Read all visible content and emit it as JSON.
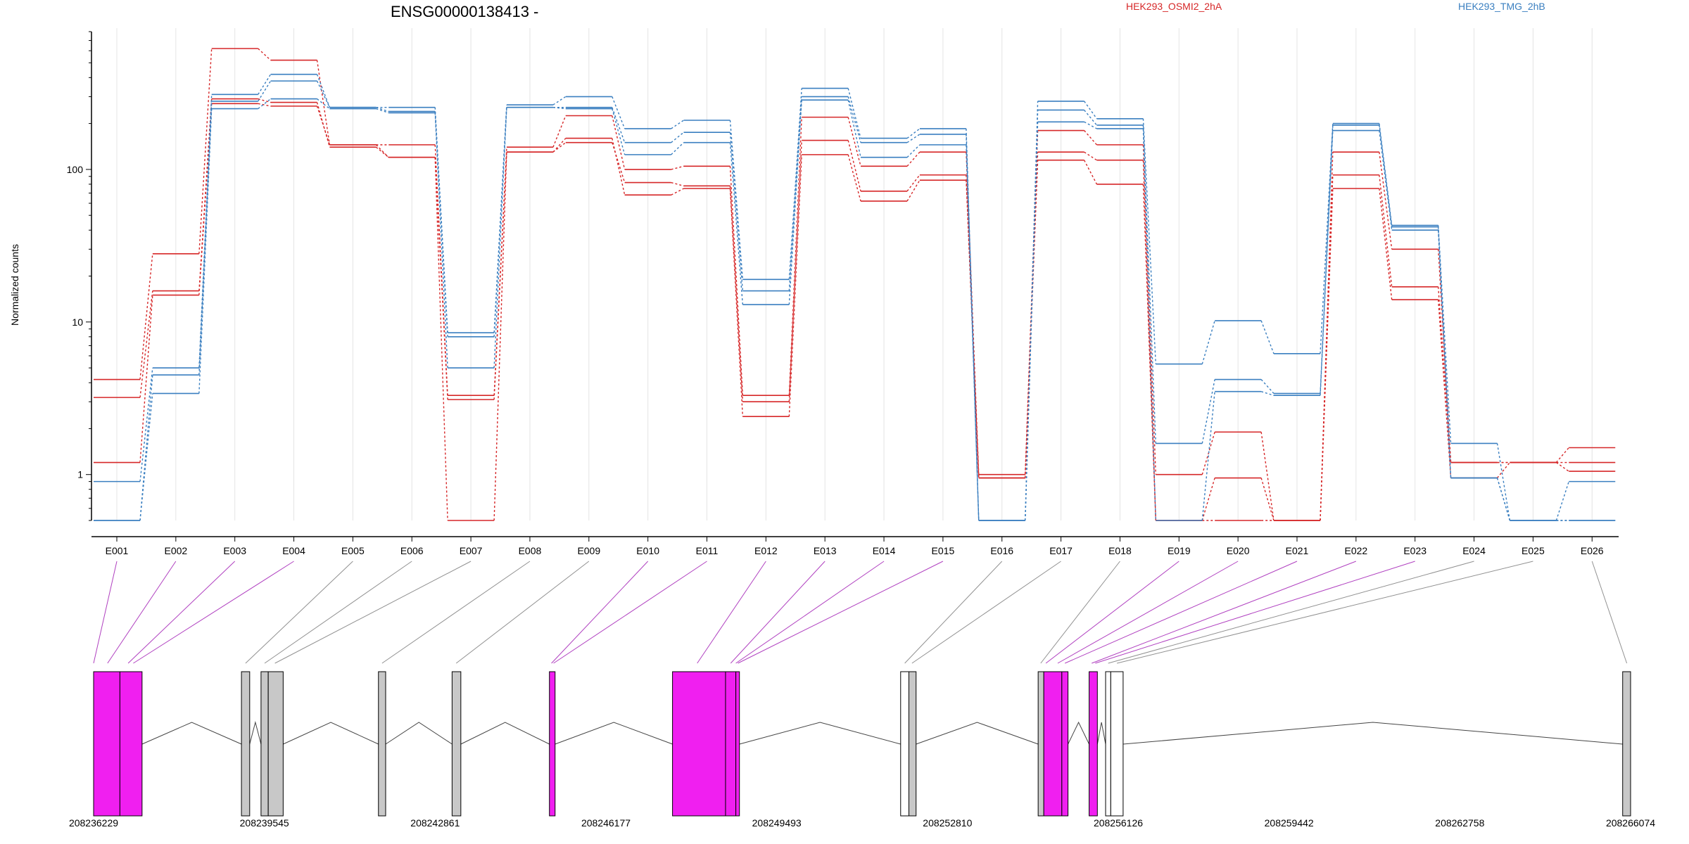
{
  "chart_data": {
    "type": "line",
    "title": "ENSG00000138413 -",
    "ylabel": "Normalized counts",
    "xlabel": "",
    "y_scale": "log",
    "y_ticks": [
      1,
      10,
      100
    ],
    "y_tick_labels": [
      "1",
      "10",
      "100"
    ],
    "ylim": [
      0.5,
      800
    ],
    "grid": "vertical",
    "legend_placement": "top",
    "categories": [
      "E001",
      "E002",
      "E003",
      "E004",
      "E005",
      "E006",
      "E007",
      "E008",
      "E009",
      "E010",
      "E011",
      "E012",
      "E013",
      "E014",
      "E015",
      "E016",
      "E017",
      "E018",
      "E019",
      "E020",
      "E021",
      "E022",
      "E023",
      "E024",
      "E025",
      "E026"
    ],
    "groups": [
      {
        "name": "HEK293_OSMI2_2hA",
        "color": "#d62728"
      },
      {
        "name": "HEK293_TMG_2hB",
        "color": "#3a7fc0"
      }
    ],
    "series": [
      {
        "group": 0,
        "values": [
          4.2,
          28,
          620,
          520,
          145,
          145,
          3.3,
          140,
          225,
          100,
          105,
          3.3,
          220,
          105,
          130,
          1.0,
          180,
          145,
          1.0,
          1.9,
          0.5,
          130,
          30,
          1.2,
          1.2,
          1.5
        ]
      },
      {
        "group": 0,
        "values": [
          3.2,
          16,
          290,
          275,
          140,
          120,
          3.1,
          130,
          150,
          82,
          78,
          3.0,
          155,
          72,
          92,
          0.95,
          130,
          115,
          0.5,
          0.95,
          0.5,
          92,
          17,
          1.2,
          1.2,
          1.2
        ]
      },
      {
        "group": 0,
        "values": [
          1.2,
          15,
          270,
          260,
          145,
          120,
          0.5,
          130,
          160,
          68,
          75,
          2.4,
          125,
          62,
          85,
          0.95,
          115,
          80,
          0.5,
          0.5,
          0.5,
          75,
          14,
          0.95,
          1.2,
          1.05
        ]
      },
      {
        "group": 1,
        "values": [
          0.9,
          5.0,
          310,
          420,
          255,
          255,
          8.5,
          265,
          300,
          185,
          210,
          19,
          340,
          160,
          185,
          0.5,
          280,
          215,
          5.3,
          10.2,
          6.2,
          200,
          43,
          1.6,
          0.5,
          0.9
        ]
      },
      {
        "group": 1,
        "values": [
          0.5,
          4.5,
          280,
          380,
          255,
          240,
          8.0,
          255,
          255,
          150,
          175,
          16,
          300,
          150,
          170,
          0.5,
          245,
          195,
          1.6,
          4.2,
          3.4,
          195,
          42,
          0.95,
          0.5,
          0.5
        ]
      },
      {
        "group": 1,
        "values": [
          0.5,
          3.4,
          250,
          290,
          250,
          235,
          5.0,
          255,
          250,
          125,
          150,
          13,
          285,
          120,
          145,
          0.5,
          205,
          185,
          0.5,
          3.5,
          3.3,
          180,
          40,
          0.95,
          0.5,
          0.5
        ]
      }
    ],
    "genomic_axis": {
      "tick_labels": [
        "208236229",
        "208239545",
        "208242861",
        "208246177",
        "208249493",
        "208252810",
        "208256126",
        "208259442",
        "208262758",
        "208266074"
      ],
      "start": 208236229,
      "end": 208266074
    },
    "exon_blocks": [
      {
        "start": 208236229,
        "end": 208236740,
        "type": "differential"
      },
      {
        "start": 208236740,
        "end": 208237170,
        "type": "differential"
      },
      {
        "start": 208239100,
        "end": 208239260,
        "type": "constant"
      },
      {
        "start": 208239480,
        "end": 208239620,
        "type": "constant"
      },
      {
        "start": 208239620,
        "end": 208239910,
        "type": "constant"
      },
      {
        "start": 208241760,
        "end": 208241900,
        "type": "constant"
      },
      {
        "start": 208243190,
        "end": 208243360,
        "type": "constant"
      },
      {
        "start": 208245080,
        "end": 208245190,
        "type": "differential"
      },
      {
        "start": 208247470,
        "end": 208248500,
        "type": "differential"
      },
      {
        "start": 208248500,
        "end": 208248700,
        "type": "differential"
      },
      {
        "start": 208248700,
        "end": 208248770,
        "type": "differential"
      },
      {
        "start": 208251900,
        "end": 208252060,
        "type": "unexpressed"
      },
      {
        "start": 208252060,
        "end": 208252200,
        "type": "constant"
      },
      {
        "start": 208254570,
        "end": 208254680,
        "type": "constant"
      },
      {
        "start": 208254680,
        "end": 208255030,
        "type": "differential"
      },
      {
        "start": 208255030,
        "end": 208255150,
        "type": "differential"
      },
      {
        "start": 208255560,
        "end": 208255720,
        "type": "differential"
      },
      {
        "start": 208255880,
        "end": 208255980,
        "type": "unexpressed"
      },
      {
        "start": 208255980,
        "end": 208256220,
        "type": "unexpressed"
      },
      {
        "start": 208265920,
        "end": 208266074,
        "type": "constant"
      }
    ],
    "introns": [
      {
        "from": 208237170,
        "to": 208239100
      },
      {
        "from": 208239260,
        "to": 208239480
      },
      {
        "from": 208239910,
        "to": 208241760
      },
      {
        "from": 208241900,
        "to": 208243190
      },
      {
        "from": 208243360,
        "to": 208245080
      },
      {
        "from": 208245190,
        "to": 208247470
      },
      {
        "from": 208248770,
        "to": 208251900
      },
      {
        "from": 208252200,
        "to": 208254570
      },
      {
        "from": 208255150,
        "to": 208255560
      },
      {
        "from": 208255720,
        "to": 208255880
      },
      {
        "from": 208256220,
        "to": 208265920
      }
    ],
    "connectors": [
      {
        "exon": "E001",
        "pos": 208236229,
        "type": "differential"
      },
      {
        "exon": "E002",
        "pos": 208236500,
        "type": "differential"
      },
      {
        "exon": "E003",
        "pos": 208236900,
        "type": "differential"
      },
      {
        "exon": "E004",
        "pos": 208237000,
        "type": "differential"
      },
      {
        "exon": "E005",
        "pos": 208239180,
        "type": "constant"
      },
      {
        "exon": "E006",
        "pos": 208239550,
        "type": "constant"
      },
      {
        "exon": "E007",
        "pos": 208239750,
        "type": "constant"
      },
      {
        "exon": "E008",
        "pos": 208241830,
        "type": "constant"
      },
      {
        "exon": "E009",
        "pos": 208243270,
        "type": "constant"
      },
      {
        "exon": "E010",
        "pos": 208245120,
        "type": "differential"
      },
      {
        "exon": "E011",
        "pos": 208245160,
        "type": "differential"
      },
      {
        "exon": "E012",
        "pos": 208247950,
        "type": "differential"
      },
      {
        "exon": "E013",
        "pos": 208248600,
        "type": "differential"
      },
      {
        "exon": "E014",
        "pos": 208248700,
        "type": "differential"
      },
      {
        "exon": "E015",
        "pos": 208248740,
        "type": "differential"
      },
      {
        "exon": "E016",
        "pos": 208251980,
        "type": "constant"
      },
      {
        "exon": "E017",
        "pos": 208252120,
        "type": "constant"
      },
      {
        "exon": "E018",
        "pos": 208254620,
        "type": "constant"
      },
      {
        "exon": "E019",
        "pos": 208254720,
        "type": "differential"
      },
      {
        "exon": "E020",
        "pos": 208254950,
        "type": "differential"
      },
      {
        "exon": "E021",
        "pos": 208255090,
        "type": "differential"
      },
      {
        "exon": "E022",
        "pos": 208255610,
        "type": "differential"
      },
      {
        "exon": "E023",
        "pos": 208255680,
        "type": "differential"
      },
      {
        "exon": "E024",
        "pos": 208255930,
        "type": "constant"
      },
      {
        "exon": "E025",
        "pos": 208256100,
        "type": "constant"
      },
      {
        "exon": "E026",
        "pos": 208266000,
        "type": "constant"
      }
    ],
    "colors": {
      "group_a": "#d62728",
      "group_b": "#3a7fc0",
      "differential_exon": "#f01ff0",
      "constant_exon": "#c8c8c8",
      "unexpressed_exon": "#ffffff",
      "differential_connector": "#b040c0",
      "constant_connector": "#909090",
      "grid": "#e4e4e4"
    }
  }
}
